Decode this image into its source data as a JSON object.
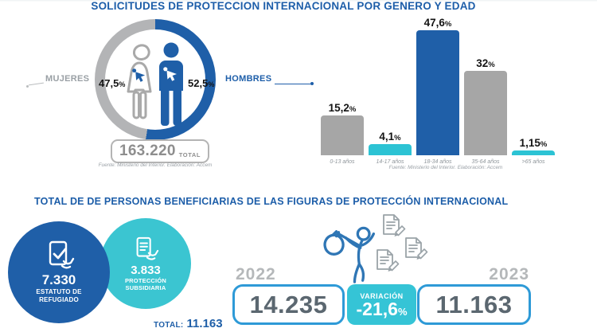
{
  "percent": "%",
  "section1": {
    "title": "SOLICITUDES DE PROTECCIÓN INTERNACIONAL POR GÉNERO Y EDAD",
    "donut": {
      "women_label": "MUJERES",
      "women_value": "47,5",
      "men_label": "HOMBRES",
      "men_value": "52,5",
      "total_value": "163.220",
      "total_label": "TOTAL",
      "source": "Fuente: Ministerio del Interior. Elaboración: Accem"
    },
    "bars": {
      "source": "Fuente: Ministerio del Interior. Elaboración: Accem"
    }
  },
  "section2": {
    "title": "TOTAL DE DE PERSONAS BENEFICIARIAS DE LAS FIGURAS DE PROTECCIÓN INTERNACIONAL",
    "refugee": {
      "value": "7.330",
      "label1": "ESTATUTO DE",
      "label2": "REFUGIADO"
    },
    "subsidiary": {
      "value": "3.833",
      "label1": "PROTECCIÓN",
      "label2": "SUBSIDIARIA"
    },
    "total_label": "TOTAL:",
    "total_value": "11.163",
    "year_left": "2022",
    "year_right": "2023",
    "value_left": "14.235",
    "variation_label": "VARIACIÓN",
    "variation_value": "-21,6",
    "value_right": "11.163"
  },
  "colors": {
    "blue": "#1f5fa8",
    "teal": "#35c4d6",
    "gray": "#a6a6a6",
    "title_blue": "#1d5ea9",
    "box_border_blue": "#2e9ad7",
    "number_gray": "#5b6770"
  },
  "chart_data": [
    {
      "type": "pie",
      "title": "Solicitudes de protección internacional por género",
      "categories": [
        "Mujeres",
        "Hombres"
      ],
      "values": [
        47.5,
        52.5
      ],
      "unit": "%",
      "total": 163220,
      "colors": [
        "#b3b4b6",
        "#1f5fa8"
      ],
      "source": "Fuente: Ministerio del Interior. Elaboración: Accem"
    },
    {
      "type": "bar",
      "title": "Solicitudes de protección internacional por edad",
      "categories": [
        "0-13 años",
        "14-17 años",
        "18-34 años",
        "35-64 años",
        ">65 años"
      ],
      "values": [
        15.2,
        4.1,
        47.6,
        32,
        1.15
      ],
      "value_labels": [
        "15,2",
        "4,1",
        "47,6",
        "32",
        "1,15"
      ],
      "colors": [
        "#a6a6a6",
        "#2cc3d4",
        "#1f5fa8",
        "#a6a6a6",
        "#2cc3d4"
      ],
      "unit": "%",
      "ylim": [
        0,
        50
      ],
      "grid": false,
      "source": "Fuente: Ministerio del Interior. Elaboración: Accem"
    },
    {
      "type": "bar",
      "title": "Total de personas beneficiarias de las figuras de protección internacional",
      "categories": [
        "2022",
        "2023"
      ],
      "values": [
        14235,
        11163
      ],
      "variation_pct": -21.6,
      "breakdown": {
        "estatuto_refugiado": 7330,
        "proteccion_subsidiaria": 3833,
        "total": 11163
      }
    }
  ]
}
